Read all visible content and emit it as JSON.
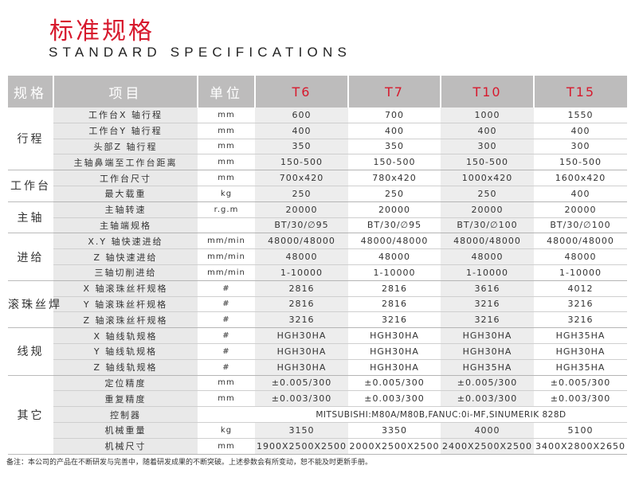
{
  "title_cn": "标准规格",
  "title_en": "STANDARD SPECIFICATIONS",
  "header": {
    "group": "规格",
    "item": "项目",
    "unit": "单位",
    "models": [
      "T6",
      "T7",
      "T10",
      "T15"
    ]
  },
  "groups": [
    {
      "name": "行程",
      "rows": [
        {
          "item": "工作台X 轴行程",
          "unit": "mm",
          "values": [
            "600",
            "700",
            "1000",
            "1550"
          ]
        },
        {
          "item": "工作台Y 轴行程",
          "unit": "mm",
          "values": [
            "400",
            "400",
            "400",
            "400"
          ]
        },
        {
          "item": "头部Z 轴行程",
          "unit": "mm",
          "values": [
            "350",
            "350",
            "300",
            "300"
          ]
        },
        {
          "item": "主轴鼻端至工作台距离",
          "unit": "mm",
          "values": [
            "150-500",
            "150-500",
            "150-500",
            "150-500"
          ]
        }
      ]
    },
    {
      "name": "工作台",
      "rows": [
        {
          "item": "工作台尺寸",
          "unit": "mm",
          "values": [
            "700x420",
            "780x420",
            "1000x420",
            "1600x420"
          ]
        },
        {
          "item": "最大载重",
          "unit": "kg",
          "values": [
            "250",
            "250",
            "250",
            "400"
          ]
        }
      ]
    },
    {
      "name": "主轴",
      "rows": [
        {
          "item": "主轴转速",
          "unit": "r.g.m",
          "values": [
            "20000",
            "20000",
            "20000",
            "20000"
          ]
        },
        {
          "item": "主轴端规格",
          "unit": "",
          "values": [
            "BT/30/∅95",
            "BT/30/∅95",
            "BT/30/∅100",
            "BT/30/∅100"
          ]
        }
      ]
    },
    {
      "name": "进给",
      "rows": [
        {
          "item": "X.Y 轴快速进给",
          "unit": "mm/min",
          "values": [
            "48000/48000",
            "48000/48000",
            "48000/48000",
            "48000/48000"
          ]
        },
        {
          "item": "Z 轴快速进给",
          "unit": "mm/min",
          "values": [
            "48000",
            "48000",
            "48000",
            "48000"
          ]
        },
        {
          "item": "三轴切削进给",
          "unit": "mm/min",
          "values": [
            "1-10000",
            "1-10000",
            "1-10000",
            "1-10000"
          ]
        }
      ]
    },
    {
      "name": "滚珠丝焊",
      "rows": [
        {
          "item": "X 轴滚珠丝杆规格",
          "unit": "#",
          "values": [
            "2816",
            "2816",
            "3616",
            "4012"
          ]
        },
        {
          "item": "Y 轴滚珠丝杆规格",
          "unit": "#",
          "values": [
            "2816",
            "2816",
            "3216",
            "3216"
          ]
        },
        {
          "item": "Z 轴滚珠丝杆规格",
          "unit": "#",
          "values": [
            "3216",
            "3216",
            "3216",
            "3216"
          ]
        }
      ]
    },
    {
      "name": "线规",
      "rows": [
        {
          "item": "X 轴线轨规格",
          "unit": "#",
          "values": [
            "HGH30HA",
            "HGH30HA",
            "HGH30HA",
            "HGH35HA"
          ]
        },
        {
          "item": "Y 轴线轨规格",
          "unit": "#",
          "values": [
            "HGH30HA",
            "HGH30HA",
            "HGH30HA",
            "HGH30HA"
          ]
        },
        {
          "item": "Z 轴线轨规格",
          "unit": "#",
          "values": [
            "HGH30HA",
            "HGH30HA",
            "HGH35HA",
            "HGH35HA"
          ]
        }
      ]
    },
    {
      "name": "其它",
      "rows": [
        {
          "item": "定位精度",
          "unit": "mm",
          "values": [
            "±0.005/300",
            "±0.005/300",
            "±0.005/300",
            "±0.005/300"
          ]
        },
        {
          "item": "重复精度",
          "unit": "mm",
          "values": [
            "±0.003/300",
            "±0.003/300",
            "±0.003/300",
            "±0.003/300"
          ]
        },
        {
          "item": "控制器",
          "unit": "",
          "span": "MITSUBISHI:M80A/M80B,FANUC:0i-MF,SINUMERIK 828D"
        },
        {
          "item": "机械重量",
          "unit": "kg",
          "values": [
            "3150",
            "3350",
            "4000",
            "5100"
          ]
        },
        {
          "item": "机械尺寸",
          "unit": "mm",
          "values": [
            "1900X2500X2500",
            "2000X2500X2500",
            "2400X2500X2500",
            "3400X2800X2650"
          ]
        }
      ]
    }
  ],
  "note": "备注：本公司的产品在不断研发与完善中，随着研发成果的不断突破。上述参数会有所变动，恕不能及时更新手册。"
}
